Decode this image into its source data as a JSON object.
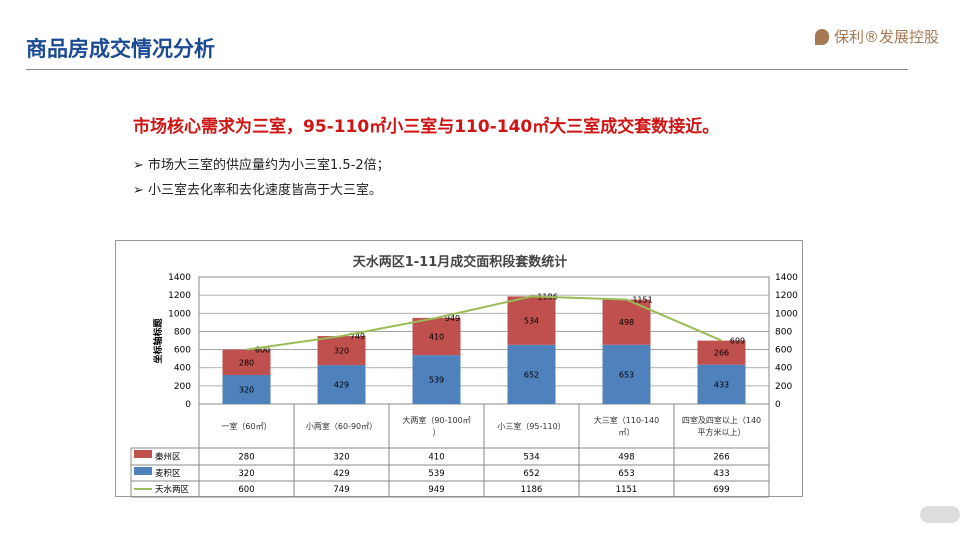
{
  "header": {
    "title": "商品房成交情况分析",
    "logo_text": "保利®发展控股"
  },
  "headline": "市场核心需求为三室，95-110㎡小三室与110-140㎡大三室成交套数接近。",
  "bullets": [
    "➢ 市场大三室的供应量约为小三室1.5-2倍；",
    "➢ 小三室去化率和去化速度皆高于大三室。"
  ],
  "chart_data": {
    "type": "bar",
    "stacked": true,
    "title": "天水两区1-11月成交面积段套数统计",
    "ylabel": "坐标轴标题",
    "ylim": [
      0,
      1400
    ],
    "yticks": [
      0,
      200,
      400,
      600,
      800,
      1000,
      1200,
      1400
    ],
    "grid": true,
    "legend": "data-table-left",
    "categories": [
      "一室（60㎡）",
      "小两室（60-90㎡）",
      "大两室（90-100㎡）",
      "小三室（95-110）",
      "大三室（110-140㎡）",
      "四室及四室以上（140平方米以上）"
    ],
    "series": [
      {
        "name": "秦州区",
        "type": "bar",
        "color": "#c0504d",
        "values": [
          280,
          320,
          410,
          534,
          498,
          266
        ]
      },
      {
        "name": "麦积区",
        "type": "bar",
        "color": "#4f81bd",
        "values": [
          320,
          429,
          539,
          652,
          653,
          433
        ]
      },
      {
        "name": "天水两区",
        "type": "line",
        "color": "#9bbb59",
        "values": [
          600,
          749,
          949,
          1186,
          1151,
          699
        ]
      }
    ]
  }
}
